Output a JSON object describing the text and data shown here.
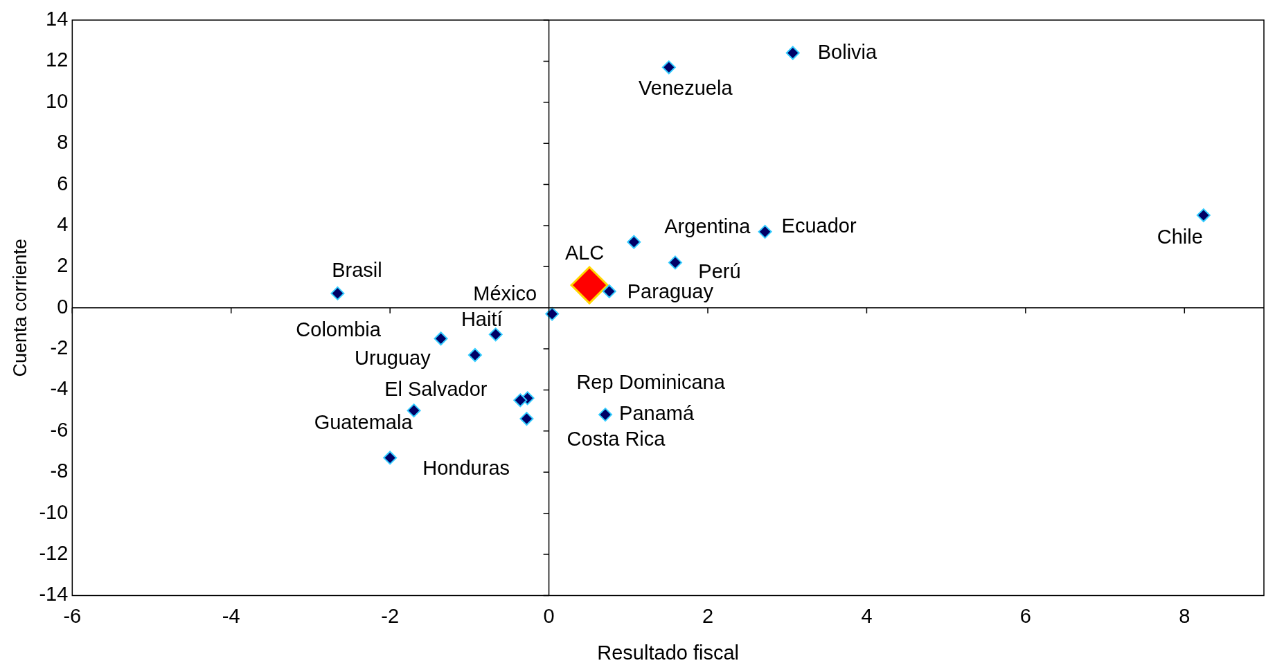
{
  "chart_data": {
    "type": "scatter",
    "xlabel": "Resultado fiscal",
    "ylabel": "Cuenta corriente",
    "xlim": [
      -6,
      9
    ],
    "xticks": [
      -6,
      -4,
      -2,
      0,
      2,
      4,
      6,
      8
    ],
    "ylim": [
      -14,
      14
    ],
    "yticks": [
      -14,
      -12,
      -10,
      -8,
      -6,
      -4,
      -2,
      0,
      2,
      4,
      6,
      8,
      10,
      12,
      14
    ],
    "legend": false,
    "marker": "diamond",
    "series": [
      {
        "color": "#000066",
        "x": [
          3.07,
          1.51,
          8.24,
          2.72,
          1.07,
          1.59,
          0.76,
          -2.66,
          0.04,
          -0.67,
          -1.36,
          -0.93,
          -0.27,
          -0.36,
          0.71,
          -1.7,
          -0.28,
          -2.0
        ],
        "values": [
          12.4,
          11.7,
          4.5,
          3.7,
          3.2,
          2.2,
          0.8,
          0.7,
          -0.3,
          -1.3,
          -1.5,
          -2.3,
          -4.4,
          -4.5,
          -5.2,
          -5.0,
          -5.4,
          -7.3
        ]
      },
      {
        "type": "scatter",
        "color": "#ff0000",
        "x": [
          0.51
        ],
        "values": [
          1.1
        ]
      }
    ],
    "annotations": [
      {
        "text": "Bolivia",
        "x": 3.07,
        "y": 12.4
      },
      {
        "text": "Venezuela",
        "x": 1.51,
        "y": 11.7
      },
      {
        "text": "Chile",
        "x": 8.24,
        "y": 4.5
      },
      {
        "text": "Ecuador",
        "x": 2.72,
        "y": 3.7
      },
      {
        "text": "Argentina",
        "x": 1.07,
        "y": 3.2
      },
      {
        "text": "Perú",
        "x": 1.59,
        "y": 2.2
      },
      {
        "text": "Paraguay",
        "x": 0.76,
        "y": 0.8
      },
      {
        "text": "Brasil",
        "x": -2.66,
        "y": 0.7
      },
      {
        "text": "México",
        "x": 0.04,
        "y": -0.3
      },
      {
        "text": "Haití",
        "x": -0.67,
        "y": -1.3
      },
      {
        "text": "Colombia",
        "x": -1.36,
        "y": -1.5
      },
      {
        "text": "Uruguay",
        "x": -0.93,
        "y": -2.3
      },
      {
        "text": "Rep Dominicana",
        "x": -0.27,
        "y": -4.4
      },
      {
        "text": "El Salvador",
        "x": -0.36,
        "y": -4.5
      },
      {
        "text": "Panamá",
        "x": 0.71,
        "y": -5.2
      },
      {
        "text": "Guatemala",
        "x": -1.7,
        "y": -5.0
      },
      {
        "text": "Costa Rica",
        "x": -0.28,
        "y": -5.4
      },
      {
        "text": "Honduras",
        "x": -2.0,
        "y": -7.3
      },
      {
        "text": "ALC",
        "x": 0.51,
        "y": 1.1
      }
    ]
  }
}
